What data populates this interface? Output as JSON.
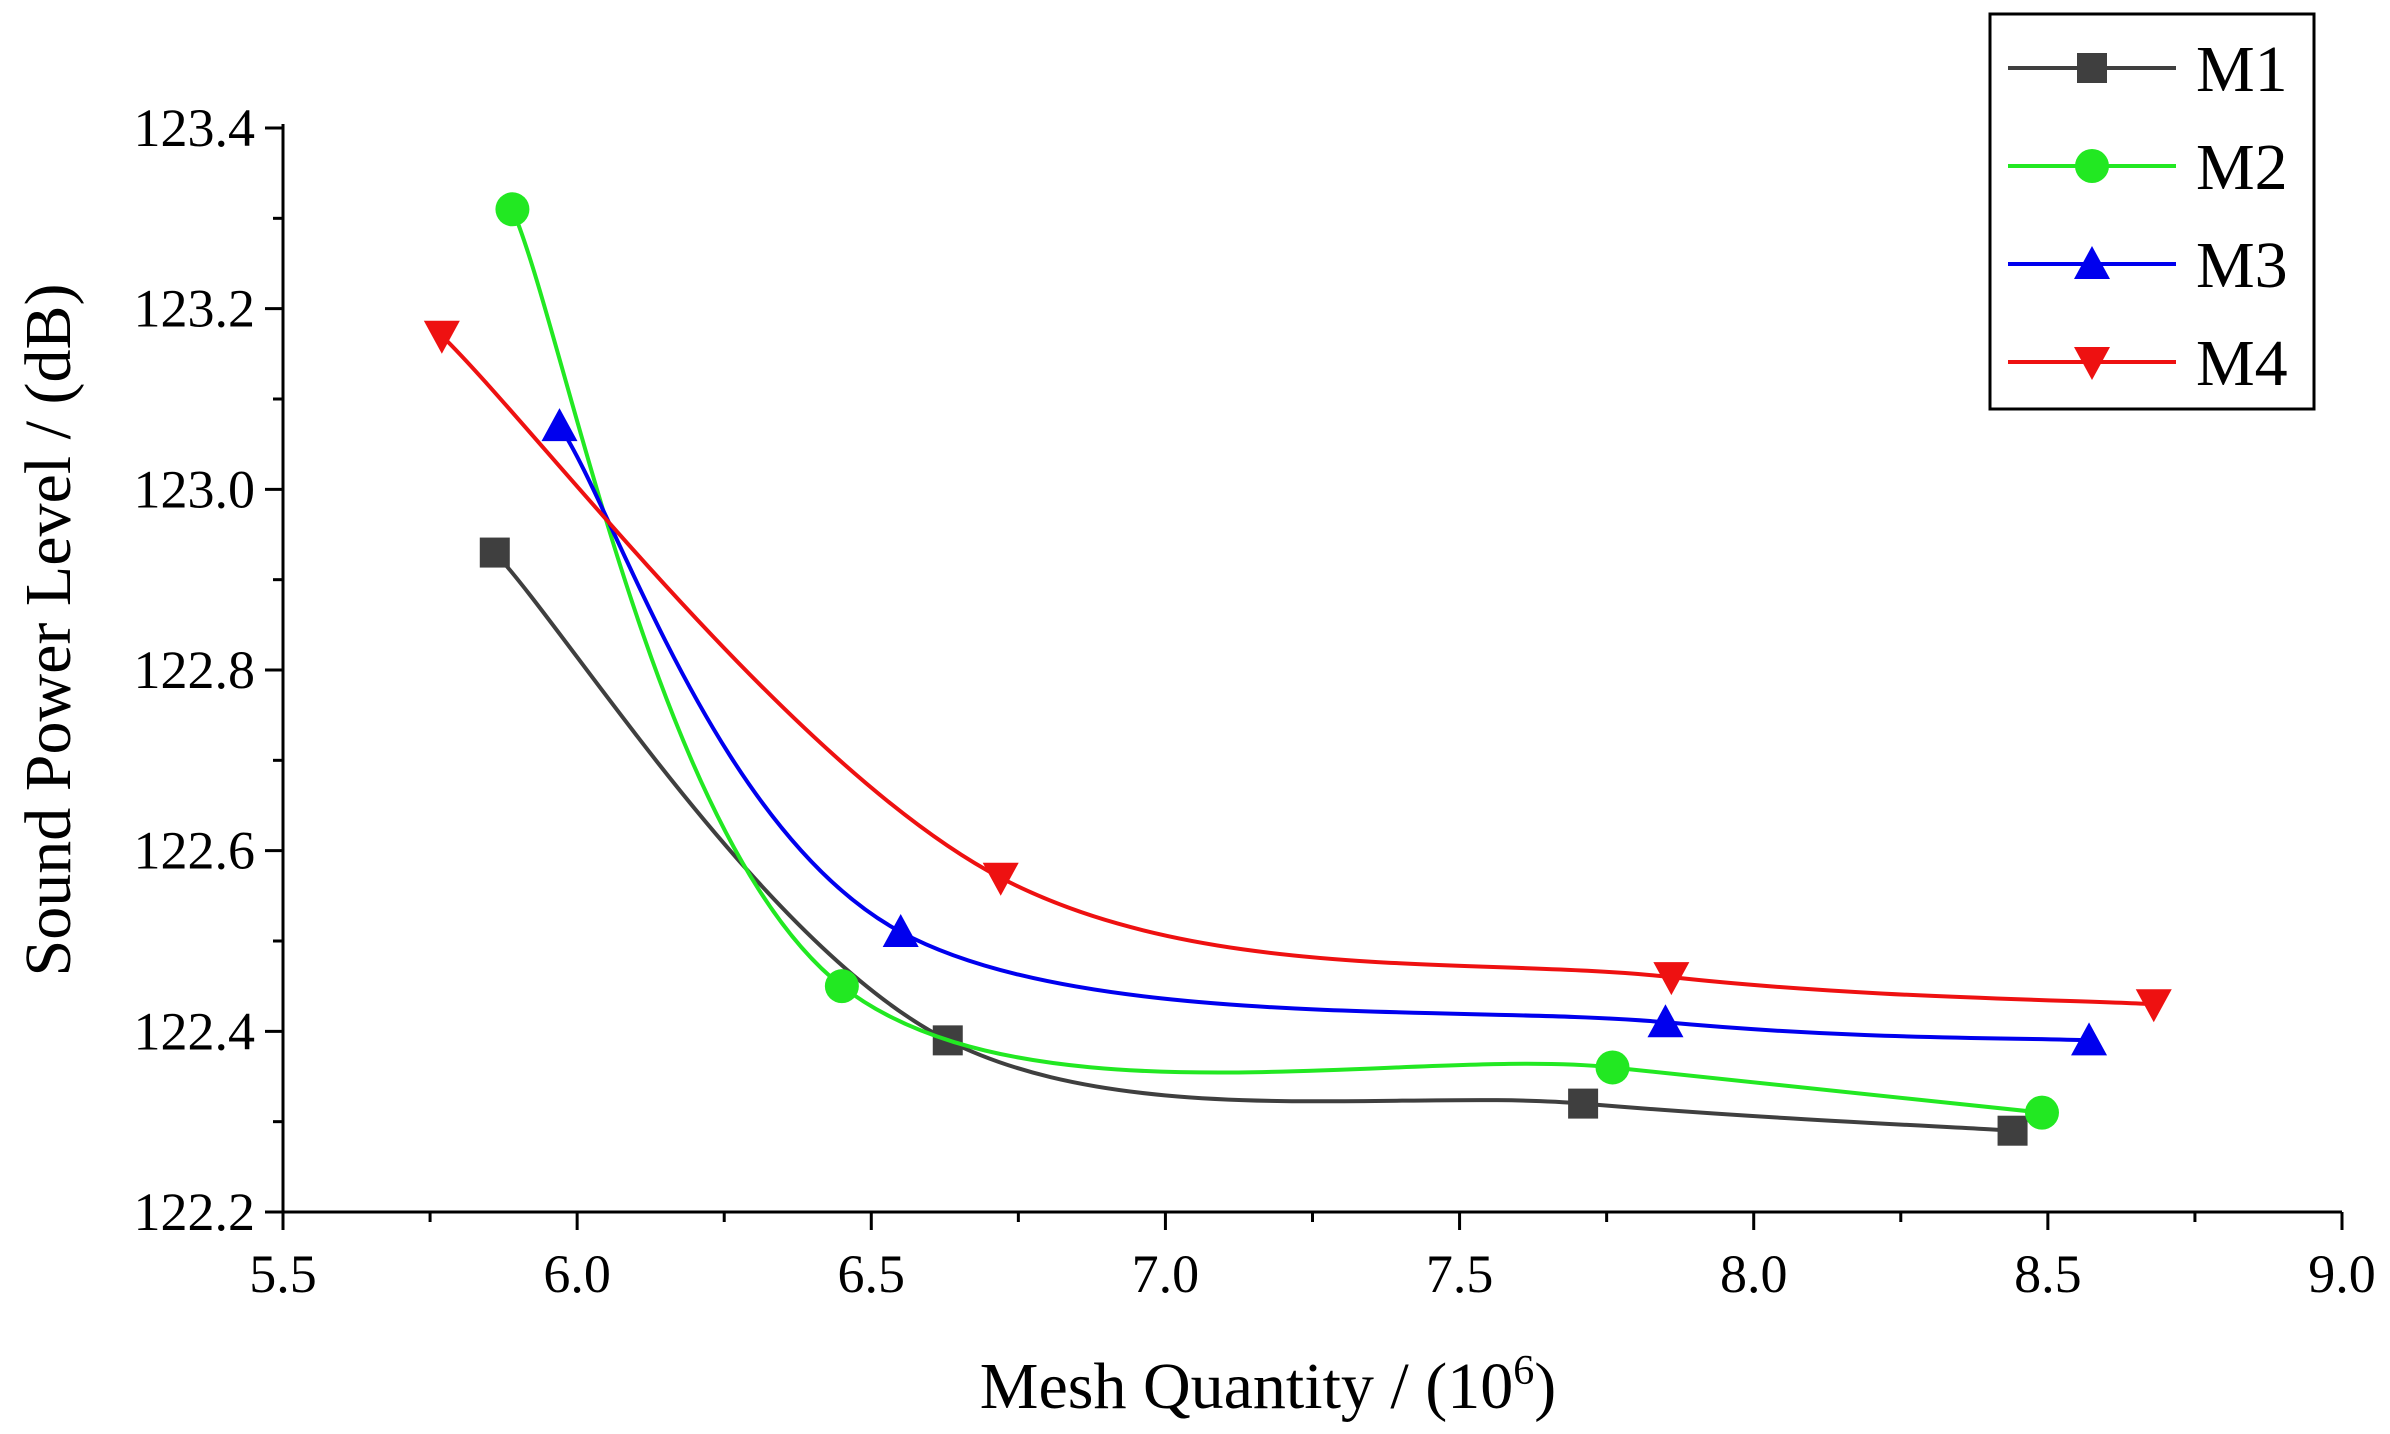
{
  "chart_data": {
    "type": "line",
    "xlabel": "Mesh Quantity / (10",
    "xlabel_sup": "6",
    "xlabel_end": ")",
    "ylabel": "Sound Power Level / (dB)",
    "xlim": [
      5.5,
      9.0
    ],
    "ylim": [
      122.2,
      123.4
    ],
    "xticks": [
      5.5,
      6.0,
      6.5,
      7.0,
      7.5,
      8.0,
      8.5,
      9.0
    ],
    "xtick_labels": [
      "5.5",
      "6.0",
      "6.5",
      "7.0",
      "7.5",
      "8.0",
      "8.5",
      "9.0"
    ],
    "yticks": [
      122.2,
      122.4,
      122.6,
      122.8,
      123.0,
      123.2,
      123.4
    ],
    "ytick_labels": [
      "122.2",
      "122.4",
      "122.6",
      "122.8",
      "123.0",
      "123.2",
      "123.4"
    ],
    "legend_position": "top-right",
    "grid": false,
    "series": [
      {
        "name": "M1",
        "color": "#3f3f3f",
        "marker": "square",
        "x": [
          5.86,
          6.63,
          7.71,
          8.44
        ],
        "y": [
          122.93,
          122.39,
          122.32,
          122.29
        ]
      },
      {
        "name": "M2",
        "color": "#22e822",
        "marker": "circle",
        "x": [
          5.89,
          6.45,
          7.76,
          8.49
        ],
        "y": [
          123.31,
          122.45,
          122.36,
          122.31
        ]
      },
      {
        "name": "M3",
        "color": "#0000ee",
        "marker": "triangle-up",
        "x": [
          5.97,
          6.55,
          7.85,
          8.57
        ],
        "y": [
          123.07,
          122.51,
          122.41,
          122.39
        ]
      },
      {
        "name": "M4",
        "color": "#ee1111",
        "marker": "triangle-down",
        "x": [
          5.77,
          6.72,
          7.86,
          8.68
        ],
        "y": [
          123.17,
          122.57,
          122.46,
          122.43
        ]
      }
    ]
  }
}
